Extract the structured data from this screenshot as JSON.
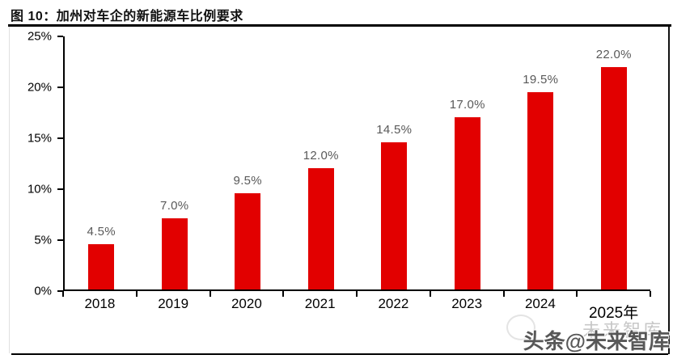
{
  "figure": {
    "title": "图  10：加州对车企的新能源车比例要求"
  },
  "chart_data": {
    "type": "bar",
    "title": "加州对车企的新能源车比例要求",
    "categories": [
      "2018",
      "2019",
      "2020",
      "2021",
      "2022",
      "2023",
      "2024",
      "2025年"
    ],
    "series": [
      {
        "name": "新能源车比例要求",
        "values": [
          4.5,
          7.0,
          9.5,
          12.0,
          14.5,
          17.0,
          19.5,
          22.0
        ]
      }
    ],
    "data_labels": [
      "4.5%",
      "7.0%",
      "9.5%",
      "12.0%",
      "14.5%",
      "17.0%",
      "19.5%",
      "22.0%"
    ],
    "y_tick_labels": [
      "0%",
      "5%",
      "10%",
      "15%",
      "20%",
      "25%"
    ],
    "ylim": [
      0,
      25
    ],
    "y_tick_step": 5,
    "grid": false,
    "legend": null,
    "bar_color": "#e20000",
    "data_label_color": "#595959",
    "axis_color": "#000000"
  },
  "watermark": {
    "main": "头条@未来智库",
    "ghost": "未来智库"
  }
}
